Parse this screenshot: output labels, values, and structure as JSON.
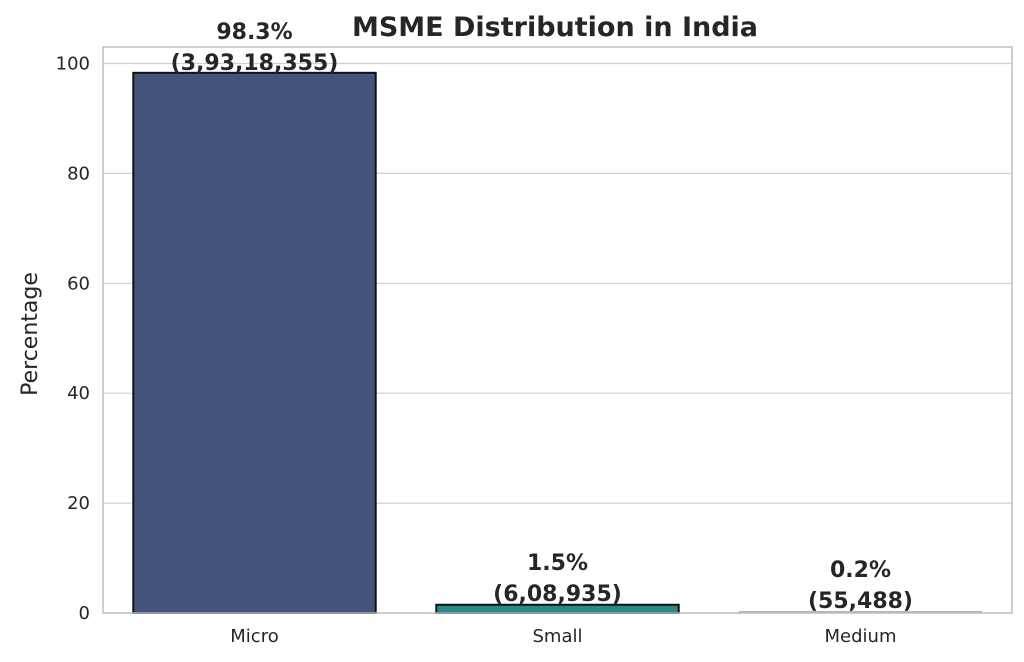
{
  "chart_data": {
    "type": "bar",
    "title": "MSME Distribution in India",
    "xlabel": "",
    "ylabel": "Percentage",
    "categories": [
      "Micro",
      "Small",
      "Medium"
    ],
    "values": [
      98.3,
      1.5,
      0.2
    ],
    "counts": [
      "3,93,18,355",
      "6,08,935",
      "55,488"
    ],
    "data_labels": [
      {
        "pct": "98.3%",
        "count": "(3,93,18,355)"
      },
      {
        "pct": "1.5%",
        "count": "(6,08,935)"
      },
      {
        "pct": "0.2%",
        "count": "(55,488)"
      }
    ],
    "colors": [
      "#44547d",
      "#268a8a",
      "#d4dcd8"
    ],
    "ylim": [
      0,
      103
    ],
    "yticks": [
      0,
      20,
      40,
      60,
      80,
      100
    ],
    "grid": true,
    "legend": "none"
  }
}
